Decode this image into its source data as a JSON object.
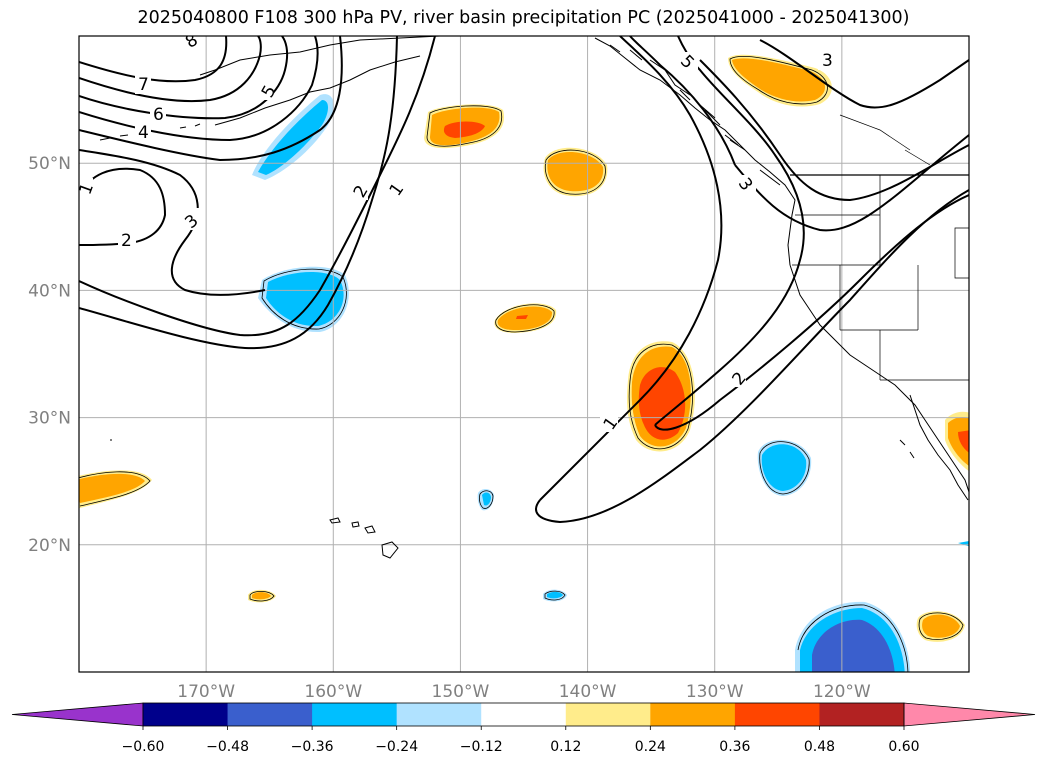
{
  "title": "2025040800 F108 300 hPa PV, river basin precipitation PC (2025041000 - 2025041300)",
  "map": {
    "lon_range": [
      -180,
      -110
    ],
    "lat_range": [
      10,
      60
    ],
    "lat_ticks": [
      {
        "lat": 50,
        "label": "50°N"
      },
      {
        "lat": 40,
        "label": "40°N"
      },
      {
        "lat": 30,
        "label": "30°N"
      },
      {
        "lat": 20,
        "label": "20°N"
      }
    ],
    "lon_ticks": [
      {
        "lon": -170,
        "label": "170°W"
      },
      {
        "lon": -160,
        "label": "160°W"
      },
      {
        "lon": -150,
        "label": "150°W"
      },
      {
        "lon": -140,
        "label": "140°W"
      },
      {
        "lon": -130,
        "label": "130°W"
      },
      {
        "lon": -120,
        "label": "120°W"
      }
    ],
    "pv_contour_levels": [
      "1",
      "2",
      "3",
      "4",
      "5",
      "6",
      "7",
      "8"
    ]
  },
  "colorbar": {
    "colors": [
      "#9933cc",
      "#00008b",
      "#3a5fcd",
      "#00bfff",
      "#b0e2ff",
      "#ffffff",
      "#ffec8b",
      "#ffa500",
      "#ff4500",
      "#b22222",
      "#ff88aa"
    ],
    "tick_labels": [
      "−0.60",
      "−0.48",
      "−0.36",
      "−0.24",
      "−0.12",
      "0.12",
      "0.24",
      "0.36",
      "0.48",
      "0.60"
    ]
  }
}
